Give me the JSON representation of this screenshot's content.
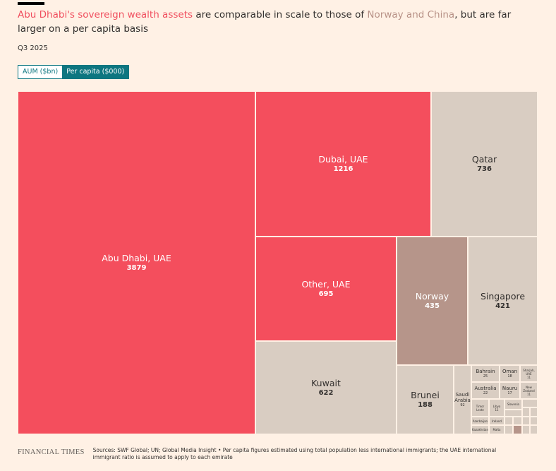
{
  "header": {
    "title_part1": "Abu Dhabi's sovereign wealth assets",
    "title_part2": " are comparable in scale to those of ",
    "title_part3": "Norway and China",
    "title_part4": ", but are far larger on a per capita basis",
    "subtitle": "Q3 2025"
  },
  "toggle": {
    "options": [
      "AUM ($bn)",
      "Per capita ($000)"
    ],
    "selected": "Per capita ($000)"
  },
  "colors": {
    "uae": "#f44e5d",
    "norway": "#b6958a",
    "other": "#d9cdc2",
    "accent": "#0d7680",
    "background": "#fff1e5"
  },
  "chart_data": {
    "type": "treemap",
    "unit": "Per capita ($000)",
    "items": [
      {
        "name": "Abu Dhabi, UAE",
        "value": 3879
      },
      {
        "name": "Dubai, UAE",
        "value": 1216
      },
      {
        "name": "Qatar",
        "value": 736
      },
      {
        "name": "Other, UAE",
        "value": 695
      },
      {
        "name": "Kuwait",
        "value": 622
      },
      {
        "name": "Norway",
        "value": 435
      },
      {
        "name": "Singapore",
        "value": 421
      },
      {
        "name": "Brunei",
        "value": 188
      },
      {
        "name": "Saudi Arabia",
        "value": 92
      },
      {
        "name": "Bahrain",
        "value": 25
      },
      {
        "name": "Oman",
        "value": 18
      },
      {
        "name": "Sharjah, UAE",
        "value": 11
      },
      {
        "name": "Australia",
        "value": 22
      },
      {
        "name": "Nauru",
        "value": 17
      },
      {
        "name": "New Zealand",
        "value": 11
      },
      {
        "name": "Timor Leste",
        "value": null
      },
      {
        "name": "Libya",
        "value": 11
      },
      {
        "name": "Slovenia",
        "value": null
      },
      {
        "name": "Azerbaijan",
        "value": null
      },
      {
        "name": "Ireland",
        "value": null
      },
      {
        "name": "Kazakhstan",
        "value": null
      },
      {
        "name": "Malta",
        "value": null
      }
    ]
  },
  "footer": {
    "brand": "FINANCIAL TIMES",
    "sources": "Sources: SWF Global; UN; Global Media Insight • Per capita figures estimated using total population less international immigrants; the UAE international immigrant ratio is assumed to apply to each emirate"
  }
}
